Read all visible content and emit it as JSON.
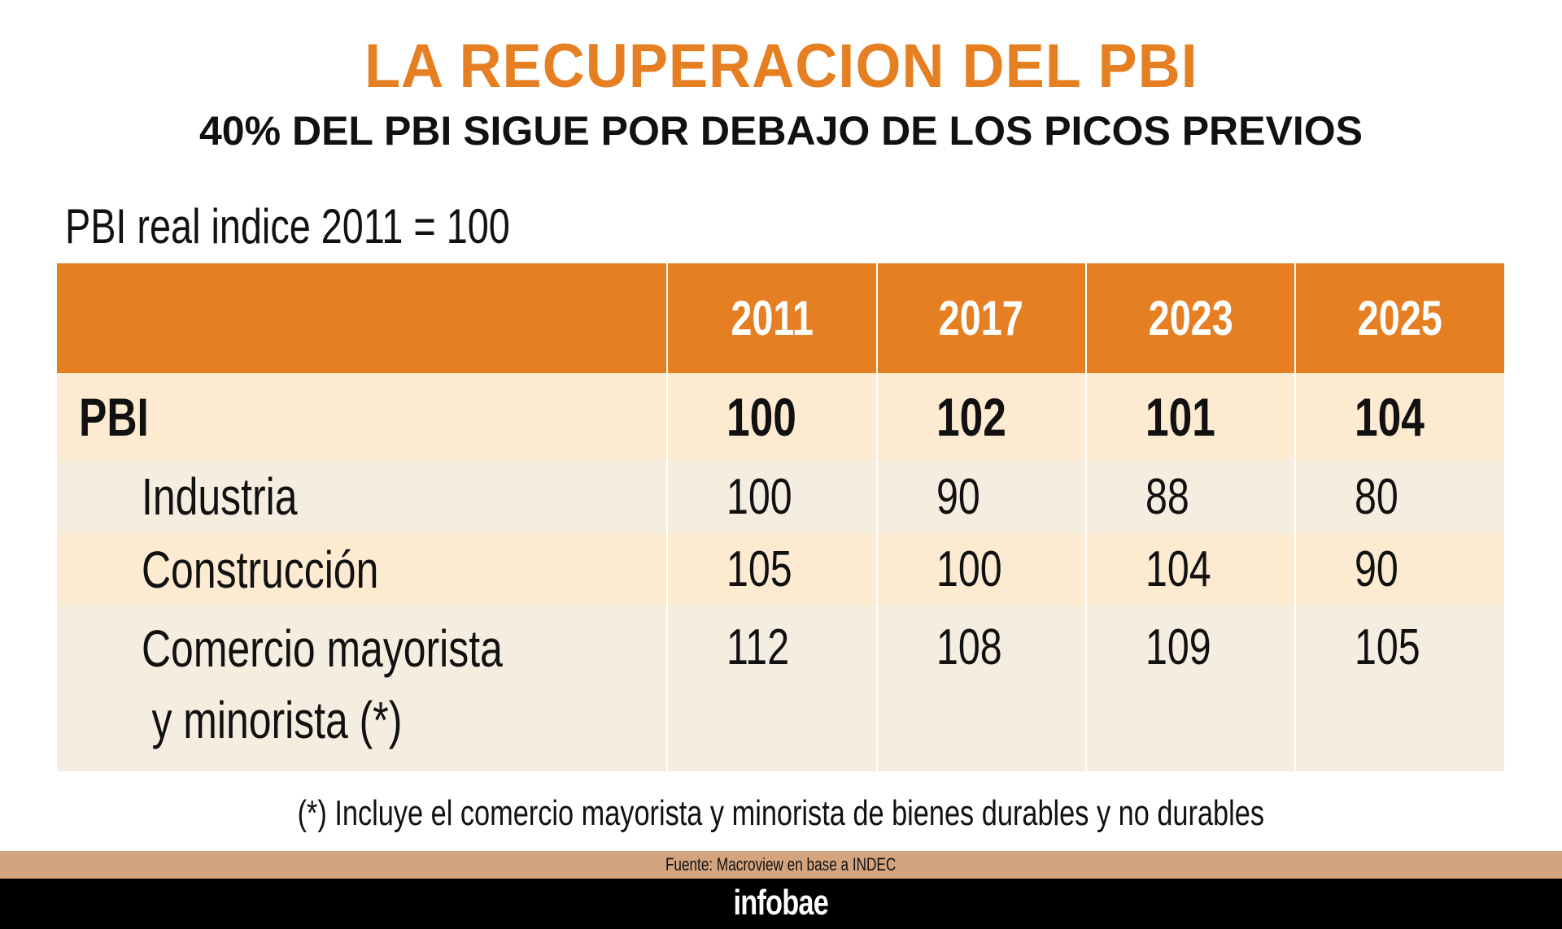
{
  "title": "LA RECUPERACION DEL PBI",
  "subtitle": "40% DEL PBI SIGUE POR DEBAJO DE LOS PICOS PREVIOS",
  "index_label": "PBI real indice 2011 = 100",
  "table": {
    "columns": [
      "",
      "2011",
      "2017",
      "2023",
      "2025"
    ],
    "rows": [
      {
        "label": "PBI",
        "values": [
          "100",
          "102",
          "101",
          "104"
        ]
      },
      {
        "label": "Industria",
        "values": [
          "100",
          "90",
          "88",
          "80"
        ]
      },
      {
        "label": "Construcción",
        "values": [
          "105",
          "100",
          "104",
          "90"
        ]
      },
      {
        "label": "Comercio mayorista",
        "label_line2": "y minorista (*)",
        "values": [
          "112",
          "108",
          "109",
          "105"
        ]
      }
    ]
  },
  "footnote": "(*) Incluye el comercio mayorista y minorista de bienes durables y no durables",
  "source": "Fuente: Macroview en base a INDEC",
  "brand": "infobae",
  "colors": {
    "accent": "#e57f22",
    "row_a": "#fcead1",
    "row_b": "#f6ede1",
    "source_bar": "#d4a47f"
  }
}
